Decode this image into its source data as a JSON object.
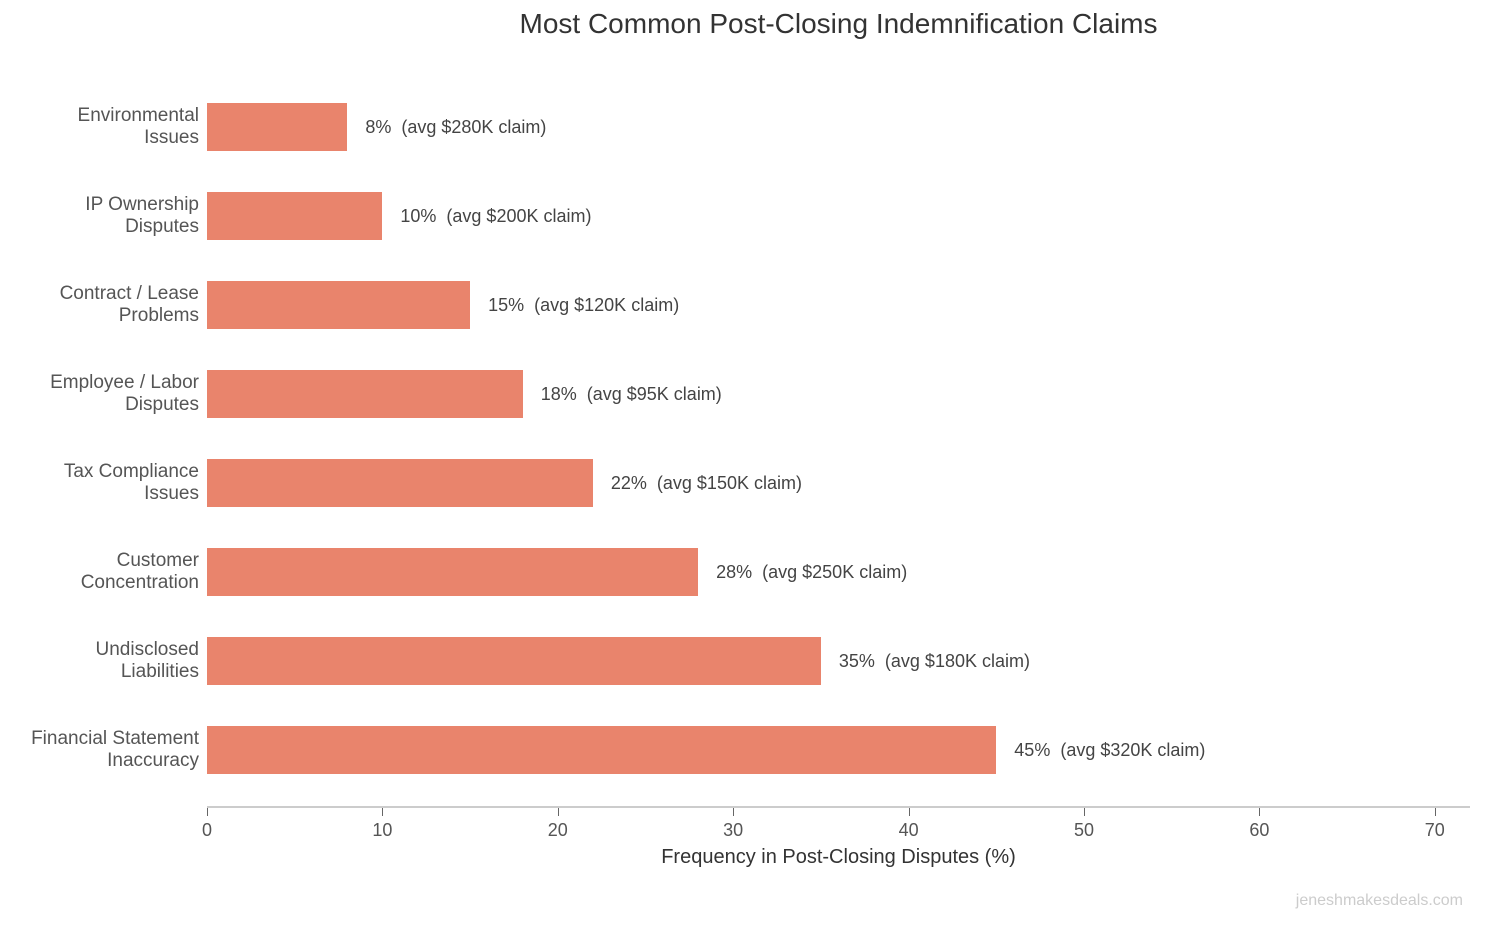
{
  "chart_data": {
    "type": "bar",
    "orientation": "horizontal",
    "title": "Most Common Post-Closing Indemnification Claims",
    "xlabel": "Frequency in Post-Closing Disputes (%)",
    "ylabel": "",
    "xlim": [
      0,
      72
    ],
    "xticks": [
      0,
      10,
      20,
      30,
      40,
      50,
      60,
      70
    ],
    "grid": false,
    "bar_color": "#E9846C",
    "categories": [
      "Environmental Issues",
      "IP Ownership Disputes",
      "Contract / Lease Problems",
      "Employee / Labor Disputes",
      "Tax Compliance Issues",
      "Customer Concentration",
      "Undisclosed Liabilities",
      "Financial Statement Inaccuracy"
    ],
    "values": [
      8,
      10,
      15,
      18,
      22,
      28,
      35,
      45
    ],
    "avg_claim_usd_k": [
      280,
      200,
      120,
      95,
      150,
      250,
      180,
      320
    ],
    "data_labels": [
      "8%  (avg $280K claim)",
      "10%  (avg $200K claim)",
      "15%  (avg $120K claim)",
      "18%  (avg $95K claim)",
      "22%  (avg $150K claim)",
      "28%  (avg $250K claim)",
      "35%  (avg $180K claim)",
      "45%  (avg $320K claim)"
    ]
  },
  "labels": {
    "title": "Most Common Post-Closing Indemnification Claims",
    "xlabel": "Frequency in Post-Closing Disputes (%)",
    "watermark": "jeneshmakesdeals.com",
    "categories": [
      [
        "Environmental",
        "Issues"
      ],
      [
        "IP Ownership",
        "Disputes"
      ],
      [
        "Contract / Lease",
        "Problems"
      ],
      [
        "Employee / Labor",
        "Disputes"
      ],
      [
        "Tax Compliance",
        "Issues"
      ],
      [
        "Customer",
        "Concentration"
      ],
      [
        "Undisclosed",
        "Liabilities"
      ],
      [
        "Financial Statement",
        "Inaccuracy"
      ]
    ],
    "ticks": [
      "0",
      "10",
      "20",
      "30",
      "40",
      "50",
      "60",
      "70"
    ]
  }
}
